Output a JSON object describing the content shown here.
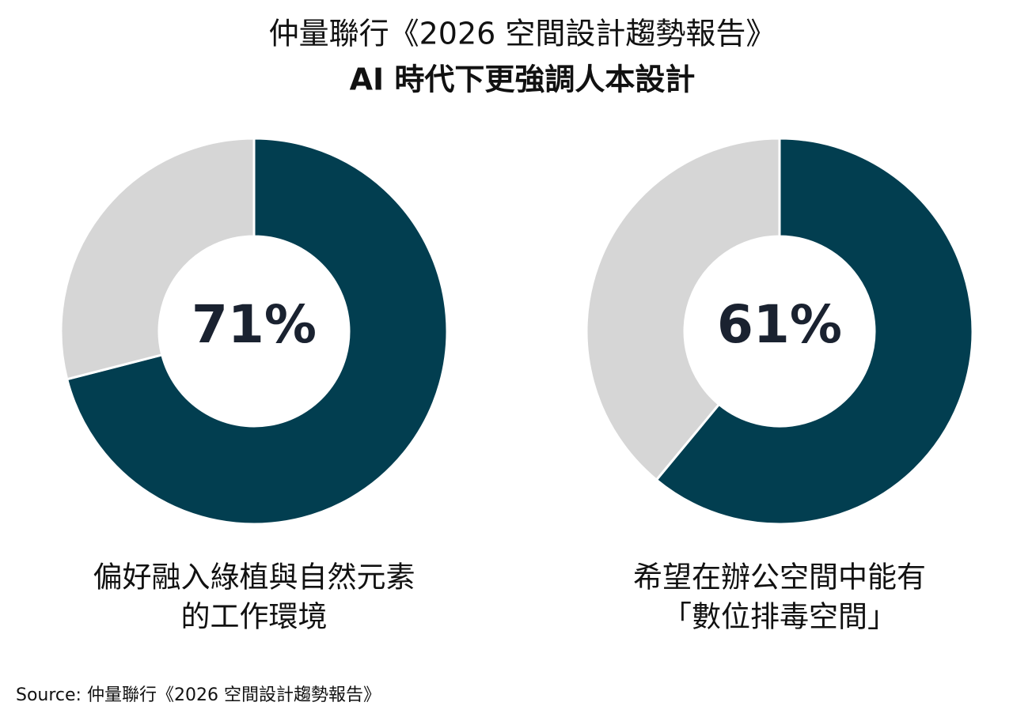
{
  "title": "仲量聯行《2026 空間設計趨勢報告》",
  "subtitle": "AI 時代下更強調人本設計",
  "source": "Source: 仲量聯行《2026 空間設計趨勢報告》",
  "chart_data": [
    {
      "type": "donut",
      "values": [
        71,
        29
      ],
      "value_labels": [
        "71%",
        null
      ],
      "colors": [
        "#023e50",
        "#d6d6d6"
      ],
      "caption": [
        "偏好融入綠植與自然元素",
        "的工作環境"
      ]
    },
    {
      "type": "donut",
      "values": [
        61,
        39
      ],
      "value_labels": [
        "61%",
        null
      ],
      "colors": [
        "#023e50",
        "#d6d6d6"
      ],
      "caption": [
        "希望在辦公空間中能有",
        "「數位排毒空間」"
      ]
    }
  ]
}
